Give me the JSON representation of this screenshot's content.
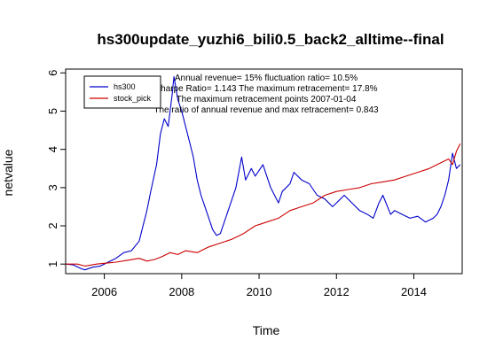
{
  "chart_data": {
    "type": "line",
    "title": "hs300update_yuzhi6_bili0.5_back2_alltime--final",
    "xlabel": "Time",
    "ylabel": "netvalue",
    "xlim": [
      2005.0,
      2015.25
    ],
    "ylim": [
      0.75,
      6.1
    ],
    "x_ticks": [
      2006,
      2008,
      2010,
      2012,
      2014
    ],
    "x_tick_labels": [
      "2006",
      "2008",
      "2010",
      "2012",
      "2014"
    ],
    "y_ticks": [
      1,
      2,
      3,
      4,
      5,
      6
    ],
    "y_tick_labels": [
      "1",
      "2",
      "3",
      "4",
      "5",
      "6"
    ],
    "legend_position": "top-left",
    "annotations": [
      "Annual revenue=  15% fluctuation ratio= 10.5%",
      "Sharpe Ratio= 1.143 The maximum retracement= 17.8%",
      "The maximum retracement points 2007-01-04",
      "The ratio of annual revenue and max retracement= 0.843"
    ],
    "series": [
      {
        "name": "hs300",
        "color": "#0000cc",
        "x": [
          2005.0,
          2005.2,
          2005.4,
          2005.5,
          2005.7,
          2005.9,
          2006.1,
          2006.3,
          2006.5,
          2006.7,
          2006.9,
          2007.0,
          2007.1,
          2007.2,
          2007.35,
          2007.45,
          2007.55,
          2007.65,
          2007.75,
          2007.8,
          2007.9,
          2008.0,
          2008.1,
          2008.2,
          2008.3,
          2008.4,
          2008.5,
          2008.6,
          2008.7,
          2008.8,
          2008.9,
          2009.0,
          2009.2,
          2009.4,
          2009.55,
          2009.65,
          2009.8,
          2009.9,
          2010.1,
          2010.3,
          2010.5,
          2010.6,
          2010.8,
          2010.9,
          2011.1,
          2011.3,
          2011.5,
          2011.7,
          2011.9,
          2012.0,
          2012.2,
          2012.4,
          2012.6,
          2012.8,
          2012.95,
          2013.1,
          2013.2,
          2013.4,
          2013.5,
          2013.7,
          2013.9,
          2014.1,
          2014.3,
          2014.5,
          2014.6,
          2014.7,
          2014.8,
          2014.9,
          2015.0,
          2015.1,
          2015.2
        ],
        "values": [
          1.0,
          0.98,
          0.88,
          0.85,
          0.92,
          0.95,
          1.05,
          1.15,
          1.3,
          1.35,
          1.6,
          2.0,
          2.4,
          2.9,
          3.6,
          4.4,
          4.8,
          4.6,
          5.4,
          5.9,
          5.3,
          5.0,
          4.6,
          4.2,
          3.8,
          3.2,
          2.8,
          2.5,
          2.2,
          1.9,
          1.75,
          1.8,
          2.4,
          3.0,
          3.8,
          3.2,
          3.5,
          3.3,
          3.6,
          3.0,
          2.6,
          2.9,
          3.1,
          3.4,
          3.2,
          3.1,
          2.8,
          2.7,
          2.5,
          2.6,
          2.8,
          2.6,
          2.4,
          2.3,
          2.2,
          2.6,
          2.8,
          2.3,
          2.4,
          2.3,
          2.2,
          2.25,
          2.1,
          2.2,
          2.3,
          2.5,
          2.8,
          3.2,
          3.9,
          3.5,
          3.6
        ]
      },
      {
        "name": "stock_pick",
        "color": "#cc0000",
        "x": [
          2005.0,
          2005.3,
          2005.5,
          2005.8,
          2006.0,
          2006.3,
          2006.6,
          2006.9,
          2007.1,
          2007.3,
          2007.5,
          2007.7,
          2007.9,
          2008.1,
          2008.4,
          2008.7,
          2009.0,
          2009.3,
          2009.6,
          2009.9,
          2010.2,
          2010.5,
          2010.8,
          2011.1,
          2011.4,
          2011.7,
          2012.0,
          2012.3,
          2012.6,
          2012.9,
          2013.2,
          2013.5,
          2013.8,
          2014.1,
          2014.4,
          2014.7,
          2014.9,
          2015.0,
          2015.1,
          2015.2
        ],
        "values": [
          1.0,
          1.0,
          0.95,
          1.0,
          1.02,
          1.05,
          1.1,
          1.15,
          1.08,
          1.12,
          1.2,
          1.3,
          1.25,
          1.35,
          1.3,
          1.45,
          1.55,
          1.65,
          1.8,
          2.0,
          2.1,
          2.2,
          2.4,
          2.5,
          2.6,
          2.8,
          2.9,
          2.95,
          3.0,
          3.1,
          3.15,
          3.2,
          3.3,
          3.4,
          3.5,
          3.65,
          3.75,
          3.6,
          3.95,
          4.15
        ]
      }
    ]
  }
}
